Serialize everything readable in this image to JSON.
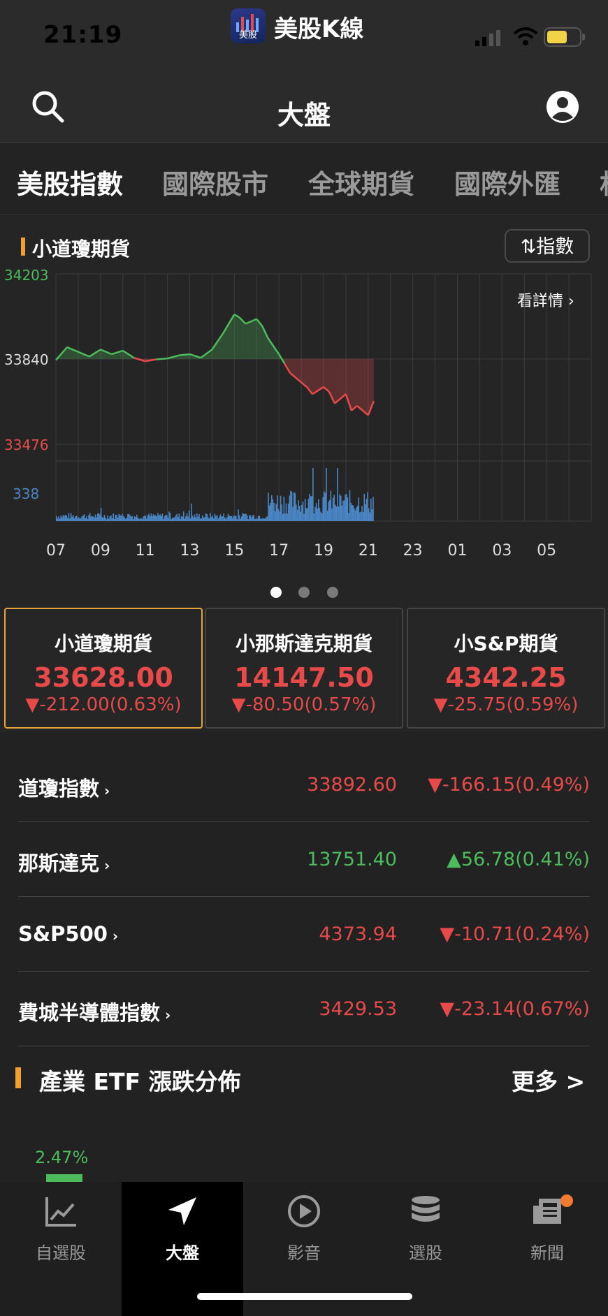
{
  "status_bar": {
    "time": "21:19",
    "app_name": "美股K線",
    "app_badge_text": "美股"
  },
  "header": {
    "title": "大盤"
  },
  "tabs": [
    {
      "label": "美股指數",
      "active": true
    },
    {
      "label": "國際股市",
      "active": false
    },
    {
      "label": "全球期貨",
      "active": false
    },
    {
      "label": "國際外匯",
      "active": false
    },
    {
      "label": "相",
      "active": false
    }
  ],
  "chart_section": {
    "title": "小道瓊期貨",
    "switch_label": "⇅指數",
    "detail_link": "看詳情",
    "y_labels": {
      "high": "34203",
      "ref": "33840",
      "low": "33476",
      "volume": "338"
    },
    "x_labels": [
      "07",
      "09",
      "11",
      "13",
      "15",
      "17",
      "19",
      "21",
      "23",
      "01",
      "03",
      "05"
    ]
  },
  "chart_data": {
    "type": "line",
    "reference": 33840,
    "ylim": [
      33476,
      34203
    ],
    "x_hours": [
      7,
      7.5,
      8,
      8.5,
      9,
      9.5,
      10,
      10.5,
      11,
      11.5,
      12,
      12.5,
      13,
      13.5,
      14,
      14.5,
      15,
      15.25,
      15.5,
      16,
      16.25,
      16.5,
      17,
      17.25,
      17.5,
      18,
      18.25,
      18.5,
      19,
      19.25,
      19.5,
      20,
      20.25,
      20.5,
      21,
      21.25
    ],
    "y_values": [
      33835,
      33890,
      33870,
      33850,
      33880,
      33860,
      33875,
      33845,
      33830,
      33838,
      33842,
      33855,
      33860,
      33845,
      33880,
      33950,
      34030,
      34015,
      33990,
      34010,
      33980,
      33930,
      33860,
      33820,
      33780,
      33740,
      33720,
      33690,
      33720,
      33700,
      33650,
      33690,
      33620,
      33640,
      33600,
      33660
    ],
    "volume_max": 338
  },
  "futures_cards": [
    {
      "name": "小道瓊期貨",
      "price": "33628.00",
      "change": "▼-212.00(0.63%)",
      "selected": true
    },
    {
      "name": "小那斯達克期貨",
      "price": "14147.50",
      "change": "▼-80.50(0.57%)",
      "selected": false
    },
    {
      "name": "小S&P期貨",
      "price": "4342.25",
      "change": "▼-25.75(0.59%)",
      "selected": false
    }
  ],
  "indices": [
    {
      "name": "道瓊指數",
      "value": "33892.60",
      "change": "▼-166.15(0.49%)",
      "direction": "down"
    },
    {
      "name": "那斯達克",
      "value": "13751.40",
      "change": "▲56.78(0.41%)",
      "direction": "up"
    },
    {
      "name": "S&P500",
      "value": "4373.94",
      "change": "▼-10.71(0.24%)",
      "direction": "down"
    },
    {
      "name": "費城半導體指數",
      "value": "3429.53",
      "change": "▼-23.14(0.67%)",
      "direction": "down"
    }
  ],
  "etf_section": {
    "title": "產業 ETF 漲跌分佈",
    "more_label": "更多 >",
    "first_value": "2.47%"
  },
  "bottom_nav": [
    {
      "label": "自選股",
      "icon": "line-chart-icon",
      "active": false
    },
    {
      "label": "大盤",
      "icon": "navigation-arrow-icon",
      "active": true
    },
    {
      "label": "影音",
      "icon": "play-circle-icon",
      "active": false
    },
    {
      "label": "選股",
      "icon": "database-stack-icon",
      "active": false
    },
    {
      "label": "新聞",
      "icon": "newspaper-icon",
      "active": false
    }
  ],
  "colors": {
    "up": "#4cbb5c",
    "down": "#e84a4a",
    "accent": "#f0a030",
    "volume": "#4a86c5"
  }
}
